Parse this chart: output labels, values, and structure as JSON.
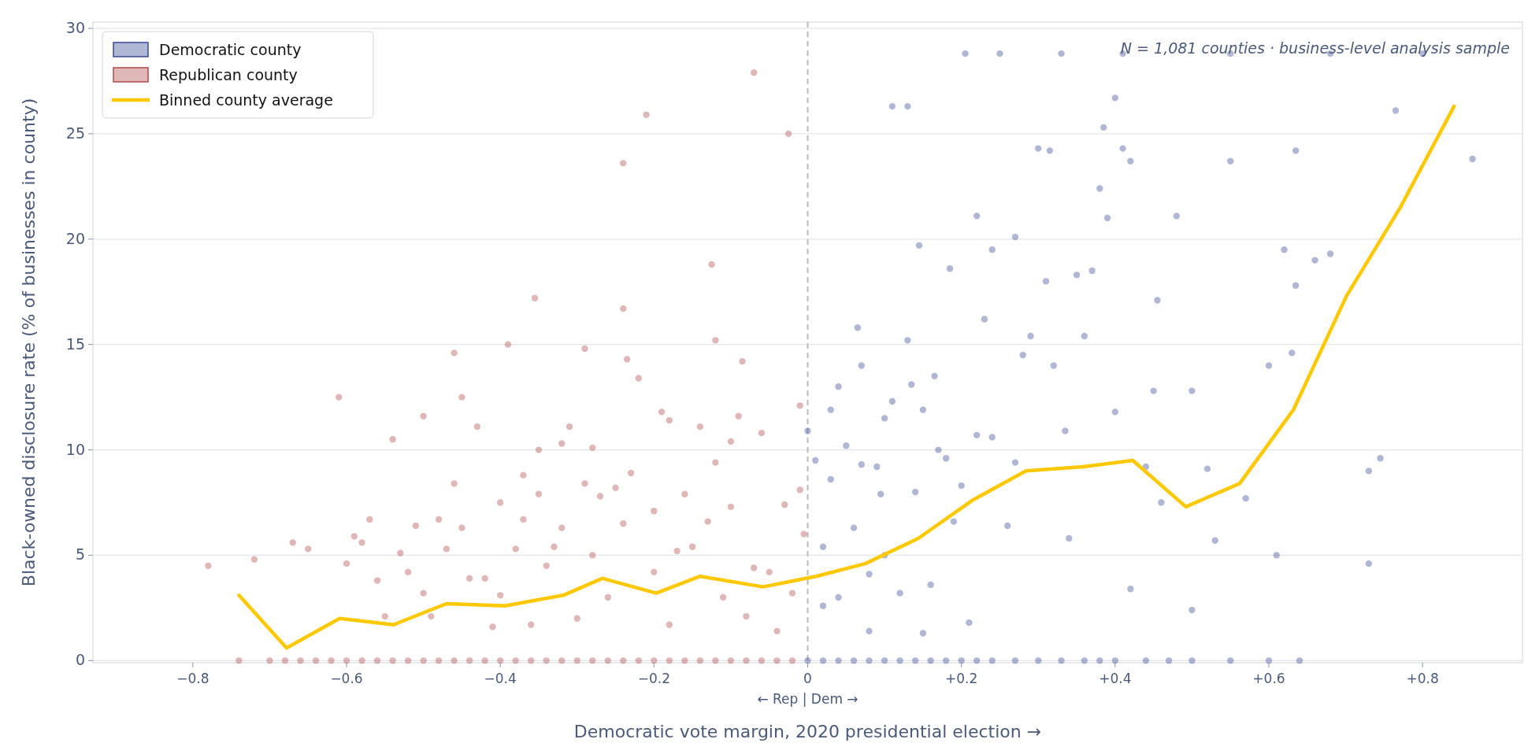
{
  "chart_data": {
    "type": "scatter",
    "xlabel": "Democratic vote margin, 2020 presidential election →",
    "ylabel": "Black-owned disclosure rate (% of businesses in county)",
    "annotations": [
      "N = 1,081 counties · business-level analysis sample",
      "← Rep | Dem →"
    ],
    "xlim": [
      -0.93,
      0.93
    ],
    "ylim": [
      -0.1,
      30.3
    ],
    "xticks": [
      {
        "value": -0.8,
        "label": "−0.8"
      },
      {
        "value": -0.6,
        "label": "−0.6"
      },
      {
        "value": -0.4,
        "label": "−0.4"
      },
      {
        "value": -0.2,
        "label": "−0.2"
      },
      0,
      {
        "value": 0.2,
        "label": "+0.2"
      },
      {
        "value": 0.4,
        "label": "+0.4"
      },
      {
        "value": 0.6,
        "label": "+0.6"
      },
      {
        "value": 0.8,
        "label": "+0.8"
      }
    ],
    "yticks": [
      0,
      5,
      10,
      15,
      20,
      25,
      30
    ],
    "grid": "y",
    "legend": "top left",
    "marker": "circle",
    "ref_lines": [
      {
        "axis": "x",
        "value": 0,
        "color": "#bbbbbb",
        "line_style": "dashed"
      }
    ],
    "series": [
      {
        "name": "Democratic county",
        "color": "#3a4a94",
        "x": [
          0,
          0.02,
          0.04,
          0.06,
          0.08,
          0.1,
          0.12,
          0.14,
          0.16,
          0.18,
          0.2,
          0.22,
          0.24,
          0.27,
          0.3,
          0.33,
          0.36,
          0.38,
          0.4,
          0.44,
          0.47,
          0.5,
          0.55,
          0.6,
          0.64,
          0.0,
          0.01,
          0.02,
          0.02,
          0.03,
          0.03,
          0.04,
          0.04,
          0.05,
          0.06,
          0.065,
          0.07,
          0.07,
          0.08,
          0.08,
          0.09,
          0.095,
          0.1,
          0.1,
          0.11,
          0.11,
          0.12,
          0.13,
          0.13,
          0.135,
          0.14,
          0.145,
          0.15,
          0.16,
          0.165,
          0.17,
          0.18,
          0.185,
          0.19,
          0.2,
          0.205,
          0.21,
          0.22,
          0.22,
          0.23,
          0.24,
          0.24,
          0.25,
          0.26,
          0.27,
          0.27,
          0.28,
          0.29,
          0.3,
          0.31,
          0.315,
          0.32,
          0.33,
          0.335,
          0.35,
          0.36,
          0.37,
          0.38,
          0.385,
          0.39,
          0.4,
          0.4,
          0.41,
          0.41,
          0.42,
          0.44,
          0.45,
          0.455,
          0.46,
          0.48,
          0.5,
          0.52,
          0.53,
          0.55,
          0.55,
          0.57,
          0.6,
          0.61,
          0.62,
          0.63,
          0.635,
          0.635,
          0.66,
          0.68,
          0.68,
          0.73,
          0.73,
          0.745,
          0.765,
          0.8,
          0.865,
          0.34,
          0.42,
          0.15,
          0.5
        ],
        "values": [
          0,
          0,
          0,
          0,
          0,
          0,
          0,
          0,
          0,
          0,
          0,
          0,
          0,
          0,
          0,
          0,
          0,
          0,
          0,
          0,
          0,
          0,
          0,
          0,
          0,
          10.9,
          9.5,
          5.4,
          2.6,
          11.9,
          8.6,
          13.0,
          3.0,
          10.2,
          6.3,
          15.8,
          9.3,
          14.0,
          4.1,
          1.4,
          9.2,
          7.9,
          5.0,
          11.5,
          26.3,
          12.3,
          3.2,
          26.3,
          15.2,
          13.1,
          8.0,
          19.7,
          11.9,
          3.6,
          13.5,
          10.0,
          9.6,
          18.6,
          6.6,
          8.3,
          28.8,
          1.8,
          21.1,
          10.7,
          16.2,
          19.5,
          10.6,
          28.8,
          6.4,
          20.1,
          9.4,
          14.5,
          15.4,
          24.3,
          18.0,
          24.2,
          14.0,
          28.8,
          10.9,
          18.3,
          15.4,
          18.5,
          22.4,
          25.3,
          21.0,
          26.7,
          11.8,
          24.3,
          28.8,
          23.7,
          9.2,
          12.8,
          17.1,
          7.5,
          21.1,
          12.8,
          9.1,
          5.7,
          23.7,
          28.8,
          7.7,
          14.0,
          5.0,
          19.5,
          14.6,
          24.2,
          17.8,
          19.0,
          19.3,
          28.8,
          9.0,
          4.6,
          9.6,
          26.1,
          28.8,
          23.8,
          5.8,
          3.4,
          1.3,
          2.4
        ]
      },
      {
        "name": "Republican county",
        "color": "#b04a4a",
        "x": [
          -0.74,
          -0.7,
          -0.68,
          -0.66,
          -0.64,
          -0.62,
          -0.6,
          -0.58,
          -0.56,
          -0.54,
          -0.52,
          -0.5,
          -0.48,
          -0.46,
          -0.44,
          -0.42,
          -0.4,
          -0.38,
          -0.36,
          -0.34,
          -0.32,
          -0.3,
          -0.28,
          -0.26,
          -0.24,
          -0.22,
          -0.2,
          -0.18,
          -0.16,
          -0.14,
          -0.12,
          -0.1,
          -0.08,
          -0.06,
          -0.04,
          -0.02,
          -0.78,
          -0.72,
          -0.67,
          -0.65,
          -0.61,
          -0.6,
          -0.59,
          -0.58,
          -0.57,
          -0.56,
          -0.55,
          -0.54,
          -0.53,
          -0.52,
          -0.51,
          -0.5,
          -0.5,
          -0.49,
          -0.48,
          -0.47,
          -0.46,
          -0.46,
          -0.45,
          -0.45,
          -0.44,
          -0.43,
          -0.42,
          -0.41,
          -0.4,
          -0.4,
          -0.39,
          -0.38,
          -0.37,
          -0.37,
          -0.36,
          -0.355,
          -0.35,
          -0.35,
          -0.34,
          -0.33,
          -0.32,
          -0.32,
          -0.31,
          -0.3,
          -0.29,
          -0.29,
          -0.28,
          -0.28,
          -0.27,
          -0.26,
          -0.25,
          -0.24,
          -0.24,
          -0.24,
          -0.235,
          -0.23,
          -0.22,
          -0.21,
          -0.2,
          -0.2,
          -0.19,
          -0.18,
          -0.18,
          -0.17,
          -0.16,
          -0.15,
          -0.14,
          -0.13,
          -0.125,
          -0.12,
          -0.12,
          -0.11,
          -0.1,
          -0.1,
          -0.09,
          -0.085,
          -0.08,
          -0.07,
          -0.07,
          -0.06,
          -0.05,
          -0.04,
          -0.03,
          -0.025,
          -0.02,
          -0.01,
          -0.01,
          -0.005
        ],
        "values": [
          0,
          0,
          0,
          0,
          0,
          0,
          0,
          0,
          0,
          0,
          0,
          0,
          0,
          0,
          0,
          0,
          0,
          0,
          0,
          0,
          0,
          0,
          0,
          0,
          0,
          0,
          0,
          0,
          0,
          0,
          0,
          0,
          0,
          0,
          0,
          0,
          4.5,
          4.8,
          5.6,
          5.3,
          12.5,
          4.6,
          5.9,
          5.6,
          6.7,
          3.8,
          2.1,
          10.5,
          5.1,
          4.2,
          6.4,
          11.6,
          3.2,
          2.1,
          6.7,
          5.3,
          14.6,
          8.4,
          12.5,
          6.3,
          3.9,
          11.1,
          3.9,
          1.6,
          7.5,
          3.1,
          15.0,
          5.3,
          6.7,
          8.8,
          1.7,
          17.2,
          10.0,
          7.9,
          4.5,
          5.4,
          10.3,
          6.3,
          11.1,
          2.0,
          14.8,
          8.4,
          10.1,
          5.0,
          7.8,
          3.0,
          8.2,
          16.7,
          23.6,
          6.5,
          14.3,
          8.9,
          13.4,
          25.9,
          7.1,
          4.2,
          11.8,
          11.4,
          1.7,
          5.2,
          7.9,
          5.4,
          11.1,
          6.6,
          18.8,
          15.2,
          9.4,
          3.0,
          10.4,
          7.3,
          11.6,
          14.2,
          2.1,
          27.9,
          4.4,
          10.8,
          4.2,
          1.4,
          7.4,
          25.0,
          3.2,
          12.1,
          8.1,
          6.0
        ]
      },
      {
        "name": "Binned county average",
        "color": "#ffc800",
        "type": "line",
        "marker": "none",
        "x": [
          -0.74,
          -0.678,
          -0.609,
          -0.539,
          -0.47,
          -0.394,
          -0.318,
          -0.267,
          -0.197,
          -0.14,
          -0.058,
          0.011,
          0.075,
          0.144,
          0.214,
          0.284,
          0.359,
          0.423,
          0.492,
          0.562,
          0.632,
          0.701,
          0.771,
          0.841
        ],
        "values": [
          3.1,
          0.6,
          2.0,
          1.7,
          2.7,
          2.6,
          3.1,
          3.9,
          3.2,
          4.0,
          3.5,
          4.0,
          4.6,
          5.8,
          7.6,
          9.0,
          9.2,
          9.5,
          7.3,
          8.4,
          11.9,
          17.3,
          21.5,
          26.3
        ]
      }
    ]
  }
}
